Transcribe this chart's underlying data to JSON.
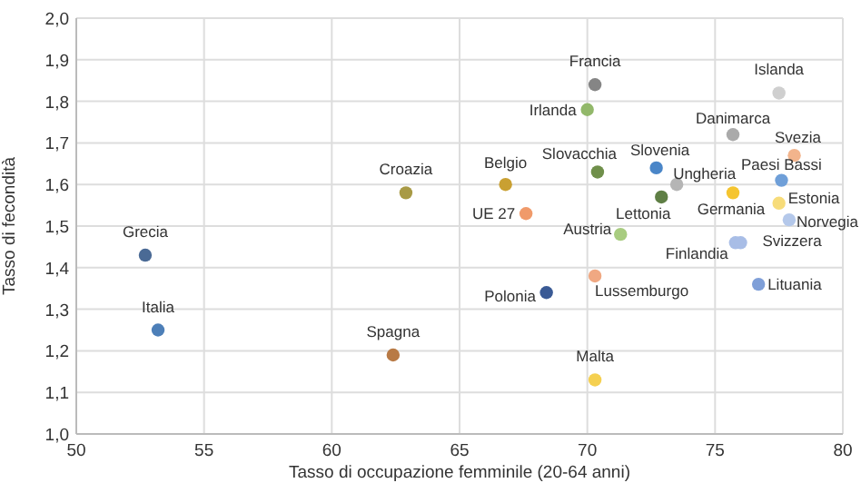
{
  "chart_data": {
    "type": "scatter",
    "xlabel": "Tasso di occupazione femminile (20-64 anni)",
    "ylabel": "Tasso di fecondità",
    "xlim": [
      50,
      80
    ],
    "xticks": [
      50,
      55,
      60,
      65,
      70,
      75,
      80
    ],
    "ylim": [
      1.0,
      2.0
    ],
    "yticks": [
      {
        "value": 1.0,
        "label": "1,0"
      },
      {
        "value": 1.1,
        "label": "1,1"
      },
      {
        "value": 1.2,
        "label": "1,2"
      },
      {
        "value": 1.3,
        "label": "1,3"
      },
      {
        "value": 1.4,
        "label": "1,4"
      },
      {
        "value": 1.5,
        "label": "1,5"
      },
      {
        "value": 1.6,
        "label": "1,6"
      },
      {
        "value": 1.7,
        "label": "1,7"
      },
      {
        "value": 1.8,
        "label": "1,8"
      },
      {
        "value": 1.9,
        "label": "1,9"
      },
      {
        "value": 2.0,
        "label": "2,0"
      }
    ],
    "grid": true,
    "marker": "circle",
    "series": [
      {
        "name": "Grecia",
        "color": "#4a6a95",
        "x": [
          52.7
        ],
        "values": [
          1.43
        ]
      },
      {
        "name": "Italia",
        "color": "#4d7fb8",
        "x": [
          53.2
        ],
        "values": [
          1.25
        ]
      },
      {
        "name": "Spagna",
        "color": "#b87a45",
        "x": [
          62.4
        ],
        "values": [
          1.19
        ]
      },
      {
        "name": "Croazia",
        "color": "#a89a45",
        "x": [
          62.9
        ],
        "values": [
          1.58
        ]
      },
      {
        "name": "Francia",
        "color": "#858585",
        "x": [
          70.3
        ],
        "values": [
          1.84
        ]
      },
      {
        "name": "Islanda",
        "color": "#cfcfcf",
        "x": [
          77.5
        ],
        "values": [
          1.82
        ]
      },
      {
        "name": "Irlanda",
        "color": "#92b86a",
        "x": [
          70.0
        ],
        "values": [
          1.78
        ]
      },
      {
        "name": "Danimarca",
        "color": "#aaaaaa",
        "x": [
          75.7
        ],
        "values": [
          1.72
        ]
      },
      {
        "name": "Svezia",
        "color": "#f2b48c",
        "x": [
          78.1
        ],
        "values": [
          1.67
        ]
      },
      {
        "name": "Belgio",
        "color": "#c9a032",
        "x": [
          66.8
        ],
        "values": [
          1.6
        ]
      },
      {
        "name": "Slovacchia",
        "color": "#6f8f4a",
        "x": [
          70.4
        ],
        "values": [
          1.63
        ]
      },
      {
        "name": "Slovenia",
        "color": "#4a86c8",
        "x": [
          72.7
        ],
        "values": [
          1.64
        ]
      },
      {
        "name": "Ungheria",
        "color": "#b5b5b5",
        "x": [
          73.5
        ],
        "values": [
          1.6
        ]
      },
      {
        "name": "Paesi Bassi",
        "color": "#6f9fd8",
        "x": [
          77.6
        ],
        "values": [
          1.61
        ]
      },
      {
        "name": "Estonia",
        "color": "#f7dc7a",
        "x": [
          77.5
        ],
        "values": [
          1.555
        ]
      },
      {
        "name": "Norvegia",
        "color": "#b4c8ea",
        "x": [
          77.9
        ],
        "values": [
          1.515
        ]
      },
      {
        "name": "Germania",
        "color": "#f5c530",
        "x": [
          75.7
        ],
        "values": [
          1.58
        ]
      },
      {
        "name": "Lettonia",
        "color": "#5f7f45",
        "x": [
          72.9
        ],
        "values": [
          1.57
        ]
      },
      {
        "name": "UE 27",
        "color": "#f09a6a",
        "x": [
          67.6
        ],
        "values": [
          1.53
        ]
      },
      {
        "name": "Austria",
        "color": "#a8cc80",
        "x": [
          71.3
        ],
        "values": [
          1.48
        ]
      },
      {
        "name": "Finlandia",
        "color": "#a8bde6",
        "x": [
          75.8
        ],
        "values": [
          1.46
        ]
      },
      {
        "name": "Svizzera",
        "color": "#a8bde6",
        "x": [
          76.0
        ],
        "values": [
          1.46
        ]
      },
      {
        "name": "Lussemburgo",
        "color": "#f0a882",
        "x": [
          70.3
        ],
        "values": [
          1.38
        ]
      },
      {
        "name": "Polonia",
        "color": "#3a5a95",
        "x": [
          68.4
        ],
        "values": [
          1.34
        ]
      },
      {
        "name": "Lituania",
        "color": "#7f9fd8",
        "x": [
          76.7
        ],
        "values": [
          1.36
        ]
      },
      {
        "name": "Malta",
        "color": "#f5d050",
        "x": [
          70.3
        ],
        "values": [
          1.13
        ]
      }
    ]
  }
}
